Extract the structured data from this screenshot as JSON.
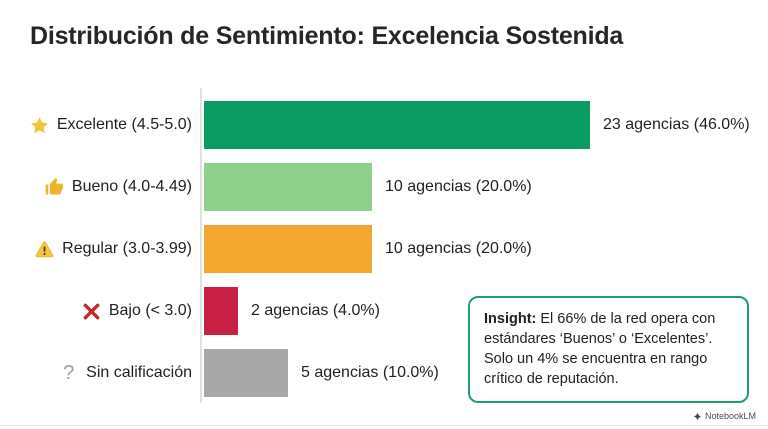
{
  "title": "Distribución de Sentimiento: Excelencia Sostenida",
  "chart_data": {
    "type": "bar",
    "orientation": "horizontal",
    "title": "Distribución de Sentimiento: Excelencia Sostenida",
    "xlabel": "",
    "ylabel": "",
    "xlim_percent": [
      0,
      50
    ],
    "grid": false,
    "legend": false,
    "categories": [
      "Excelente (4.5-5.0)",
      "Bueno (4.0-4.49)",
      "Regular (3.0-3.99)",
      "Bajo (< 3.0)",
      "Sin calificación"
    ],
    "values_agencias": [
      23,
      10,
      10,
      2,
      5
    ],
    "percentages": [
      46.0,
      20.0,
      20.0,
      4.0,
      10.0
    ],
    "rows": [
      {
        "icon": "star-icon",
        "label": "Excelente (4.5-5.0)",
        "agencias": 23,
        "percent": 46.0,
        "value_label": "23 agencias (46.0%)",
        "color": "#0a9b63"
      },
      {
        "icon": "thumbs-up-icon",
        "label": "Bueno (4.0-4.49)",
        "agencias": 10,
        "percent": 20.0,
        "value_label": "10 agencias (20.0%)",
        "color": "#8ecf8c"
      },
      {
        "icon": "warning-icon",
        "label": "Regular (3.0-3.99)",
        "agencias": 10,
        "percent": 20.0,
        "value_label": "10 agencias (20.0%)",
        "color": "#f4a72f"
      },
      {
        "icon": "x-icon",
        "label": "Bajo (< 3.0)",
        "agencias": 2,
        "percent": 4.0,
        "value_label": "2 agencias (4.0%)",
        "color": "#c81f45"
      },
      {
        "icon": "question-icon",
        "label": "Sin calificación",
        "agencias": 5,
        "percent": 10.0,
        "value_label": "5 agencias (10.0%)",
        "color": "#a8a8a8"
      }
    ]
  },
  "insight": {
    "label": "Insight:",
    "text": "El 66% de la red opera con estándares ‘Buenos’ o ‘Excelentes’. Solo un 4% se encuentra en rango crítico de reputación.",
    "border_color": "#1f9d77"
  },
  "question_glyph": "?",
  "watermark": "NotebookLM"
}
